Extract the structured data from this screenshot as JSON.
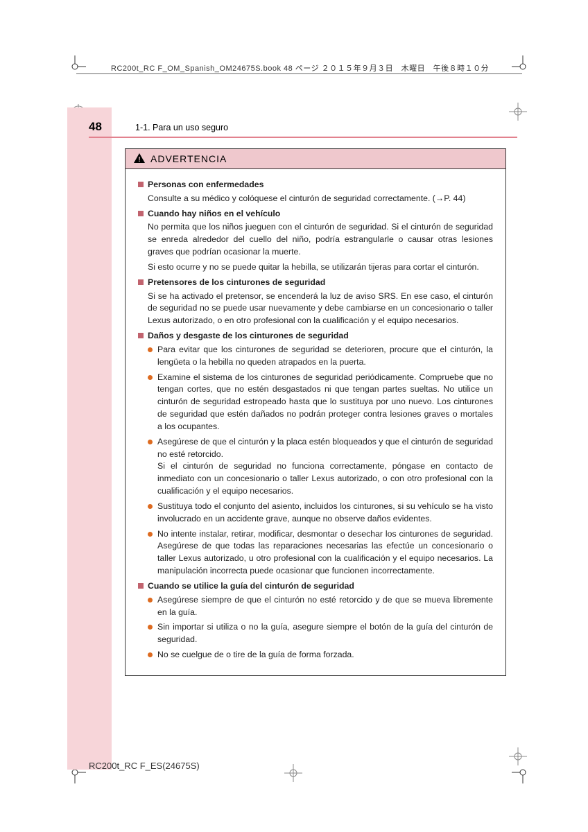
{
  "colors": {
    "pink_bar": "#f7d5d9",
    "section_rule": "#e2828e",
    "warn_header_bg": "#efc8cd",
    "square_bullet": "#c1636e",
    "round_bullet": "#dd6b20",
    "border": "#333333",
    "text": "#222222"
  },
  "header": {
    "meta_text": "RC200t_RC F_OM_Spanish_OM24675S.book  48 ページ  ２０１５年９月３日　木曜日　午後８時１０分",
    "page_number": "48",
    "section_title": "1-1. Para un uso seguro"
  },
  "warning": {
    "title": "ADVERTENCIA",
    "sections": [
      {
        "heading": "Personas con enfermedades",
        "paragraphs": [
          "Consulte a su médico y colóquese el cinturón de seguridad correctamente. (→P. 44)"
        ],
        "bullets": []
      },
      {
        "heading": "Cuando hay niños en el vehículo",
        "paragraphs": [
          "No permita que los niños jueguen con el cinturón de seguridad. Si el cinturón de seguridad se enreda alrededor del cuello del niño, podría estrangularle o causar otras lesiones graves que podrían ocasionar la muerte.",
          "Si esto ocurre y no se puede quitar la hebilla, se utilizarán tijeras para cortar el cinturón."
        ],
        "bullets": []
      },
      {
        "heading": "Pretensores de los cinturones de seguridad",
        "paragraphs": [
          "Si se ha activado el pretensor, se encenderá la luz de aviso SRS. En ese caso, el cinturón de seguridad no se puede usar nuevamente y debe cambiarse en un concesionario o taller Lexus autorizado, o en otro profesional con la cualificación y el equipo necesarios."
        ],
        "bullets": []
      },
      {
        "heading": "Daños y desgaste de los cinturones de seguridad",
        "paragraphs": [],
        "bullets": [
          "Para evitar que los cinturones de seguridad se deterioren, procure que el cinturón, la lengüeta o la hebilla no queden atrapados en la puerta.",
          "Examine el sistema de los cinturones de seguridad periódicamente. Compruebe que no tengan cortes, que no estén desgastados ni que tengan partes sueltas. No utilice un cinturón de seguridad estropeado hasta que lo sustituya por uno nuevo. Los cinturones de seguridad que estén dañados no podrán proteger contra lesiones graves o mortales a los ocupantes.",
          "Asegúrese de que el cinturón y la placa estén bloqueados y que el cinturón de seguridad no esté retorcido.\nSi el cinturón de seguridad no funciona correctamente, póngase en contacto de inmediato con un concesionario o taller Lexus autorizado, o con otro profesional con la cualificación y el equipo necesarios.",
          "Sustituya todo el conjunto del asiento, incluidos los cinturones, si su vehículo se ha visto involucrado en un accidente grave, aunque no observe daños evidentes.",
          "No intente instalar, retirar, modificar, desmontar o desechar los cinturones de seguridad. Asegúrese de que todas las reparaciones necesarias las efectúe un concesionario o taller Lexus autorizado, u otro profesional con la cualificación y el equipo necesarios. La manipulación incorrecta puede ocasionar que funcionen incorrectamente."
        ]
      },
      {
        "heading": "Cuando se utilice la guía del cinturón de seguridad",
        "paragraphs": [],
        "bullets": [
          "Asegúrese siempre de que el cinturón no esté retorcido y de que se mueva libremente en la guía.",
          "Sin importar si utiliza o no la guía, asegure siempre el botón de la guía del cinturón de seguridad.",
          "No se cuelgue de o tire de la guía de forma forzada."
        ]
      }
    ]
  },
  "footer": {
    "text": "RC200t_RC F_ES(24675S)"
  }
}
